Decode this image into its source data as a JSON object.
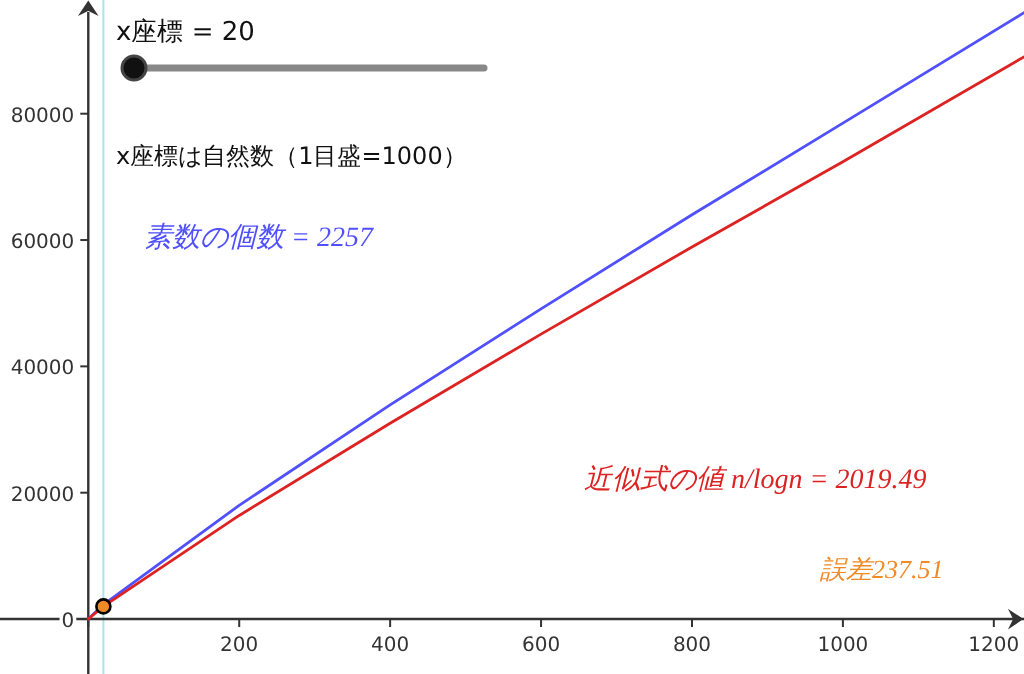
{
  "chart_data": {
    "type": "line",
    "x": [
      0,
      20,
      200,
      400,
      600,
      800,
      1000,
      1240
    ],
    "series": [
      {
        "color": "#5050ff",
        "values": [
          0,
          2300,
          18000,
          33900,
          49100,
          64000,
          78500,
          96000
        ]
      },
      {
        "color": "#dd2222",
        "values": [
          0,
          2000,
          16400,
          31000,
          45100,
          58900,
          72400,
          89000
        ]
      },
      {
        "type": "scatter",
        "color": "#f08a24",
        "x": [
          20
        ],
        "values": [
          2000
        ],
        "marker": "circle"
      }
    ],
    "xlim": [
      -117,
      1240
    ],
    "ylim": [
      -8700,
      98000
    ],
    "xticks": [
      {
        "value": 0,
        "label": null
      },
      200,
      400,
      600,
      800,
      1000,
      1200
    ],
    "yticks": [
      0,
      20000,
      40000,
      60000,
      80000
    ],
    "ref_lines": [
      {
        "axis": "x",
        "value": 20,
        "label": null,
        "color": "#a8e4ec"
      }
    ],
    "grid": false,
    "annotations": [
      "x座標 = 20",
      "x座標は自然数（1目盛=1000）",
      "素数の個数 = 2257",
      "近似式の値 n/logn = 2019.49",
      "誤差237.51"
    ]
  }
}
